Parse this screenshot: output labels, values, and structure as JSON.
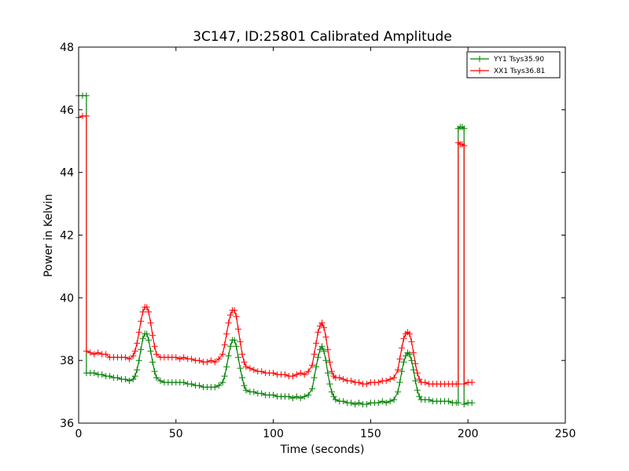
{
  "chart_data": {
    "type": "line",
    "title": "3C147, ID:25801 Calibrated Amplitude",
    "xlabel": "Time (seconds)",
    "ylabel": "Power in Kelvin",
    "xlim": [
      0,
      250
    ],
    "ylim": [
      36,
      48
    ],
    "xticks": [
      0,
      50,
      100,
      150,
      200,
      250
    ],
    "yticks": [
      36,
      38,
      40,
      42,
      44,
      46,
      48
    ],
    "grid": false,
    "legend_position": "top-right",
    "series": [
      {
        "name": "YY1 Tsys35.90",
        "color": "#008000",
        "marker": "+",
        "points": [
          [
            0,
            46.45
          ],
          [
            2,
            46.45
          ],
          [
            4,
            46.45
          ],
          [
            4,
            37.6
          ],
          [
            6,
            37.6
          ],
          [
            8,
            37.6
          ],
          [
            10,
            37.55
          ],
          [
            12,
            37.55
          ],
          [
            14,
            37.5
          ],
          [
            16,
            37.5
          ],
          [
            18,
            37.45
          ],
          [
            20,
            37.45
          ],
          [
            22,
            37.4
          ],
          [
            24,
            37.4
          ],
          [
            26,
            37.35
          ],
          [
            28,
            37.4
          ],
          [
            29,
            37.5
          ],
          [
            30,
            37.7
          ],
          [
            31,
            38.0
          ],
          [
            32,
            38.35
          ],
          [
            33,
            38.7
          ],
          [
            34,
            38.85
          ],
          [
            35,
            38.85
          ],
          [
            36,
            38.65
          ],
          [
            37,
            38.3
          ],
          [
            38,
            37.95
          ],
          [
            39,
            37.65
          ],
          [
            40,
            37.45
          ],
          [
            42,
            37.35
          ],
          [
            44,
            37.3
          ],
          [
            46,
            37.3
          ],
          [
            48,
            37.3
          ],
          [
            50,
            37.3
          ],
          [
            52,
            37.3
          ],
          [
            54,
            37.3
          ],
          [
            56,
            37.25
          ],
          [
            58,
            37.25
          ],
          [
            60,
            37.2
          ],
          [
            62,
            37.2
          ],
          [
            64,
            37.15
          ],
          [
            66,
            37.15
          ],
          [
            68,
            37.15
          ],
          [
            70,
            37.15
          ],
          [
            72,
            37.2
          ],
          [
            74,
            37.3
          ],
          [
            75,
            37.5
          ],
          [
            76,
            37.8
          ],
          [
            77,
            38.15
          ],
          [
            78,
            38.45
          ],
          [
            79,
            38.65
          ],
          [
            80,
            38.65
          ],
          [
            81,
            38.45
          ],
          [
            82,
            38.1
          ],
          [
            83,
            37.75
          ],
          [
            84,
            37.45
          ],
          [
            85,
            37.2
          ],
          [
            86,
            37.05
          ],
          [
            88,
            37.0
          ],
          [
            90,
            37.0
          ],
          [
            92,
            36.95
          ],
          [
            94,
            36.95
          ],
          [
            96,
            36.9
          ],
          [
            98,
            36.9
          ],
          [
            100,
            36.9
          ],
          [
            102,
            36.85
          ],
          [
            104,
            36.85
          ],
          [
            106,
            36.85
          ],
          [
            108,
            36.85
          ],
          [
            110,
            36.8
          ],
          [
            112,
            36.85
          ],
          [
            114,
            36.8
          ],
          [
            116,
            36.85
          ],
          [
            118,
            36.9
          ],
          [
            120,
            37.1
          ],
          [
            121,
            37.45
          ],
          [
            122,
            37.8
          ],
          [
            123,
            38.1
          ],
          [
            124,
            38.35
          ],
          [
            125,
            38.45
          ],
          [
            126,
            38.3
          ],
          [
            127,
            38.0
          ],
          [
            128,
            37.6
          ],
          [
            129,
            37.25
          ],
          [
            130,
            37.0
          ],
          [
            131,
            36.85
          ],
          [
            132,
            36.75
          ],
          [
            134,
            36.7
          ],
          [
            136,
            36.7
          ],
          [
            138,
            36.65
          ],
          [
            140,
            36.65
          ],
          [
            142,
            36.6
          ],
          [
            144,
            36.65
          ],
          [
            146,
            36.6
          ],
          [
            148,
            36.6
          ],
          [
            150,
            36.65
          ],
          [
            152,
            36.65
          ],
          [
            154,
            36.65
          ],
          [
            156,
            36.7
          ],
          [
            158,
            36.65
          ],
          [
            160,
            36.7
          ],
          [
            162,
            36.75
          ],
          [
            164,
            37.0
          ],
          [
            165,
            37.3
          ],
          [
            166,
            37.65
          ],
          [
            167,
            37.95
          ],
          [
            168,
            38.15
          ],
          [
            169,
            38.25
          ],
          [
            170,
            38.2
          ],
          [
            171,
            38.0
          ],
          [
            172,
            37.7
          ],
          [
            173,
            37.35
          ],
          [
            174,
            37.05
          ],
          [
            175,
            36.85
          ],
          [
            176,
            36.75
          ],
          [
            178,
            36.75
          ],
          [
            180,
            36.75
          ],
          [
            182,
            36.7
          ],
          [
            184,
            36.7
          ],
          [
            186,
            36.7
          ],
          [
            188,
            36.7
          ],
          [
            190,
            36.7
          ],
          [
            192,
            36.65
          ],
          [
            194,
            36.65
          ],
          [
            195,
            36.65
          ],
          [
            195,
            45.4
          ],
          [
            196,
            45.45
          ],
          [
            197,
            45.45
          ],
          [
            198,
            45.4
          ],
          [
            198,
            36.6
          ],
          [
            200,
            36.65
          ],
          [
            202,
            36.65
          ]
        ]
      },
      {
        "name": "XX1 Tsys36.81",
        "color": "#ff0000",
        "marker": "+",
        "points": [
          [
            0,
            45.75
          ],
          [
            2,
            45.8
          ],
          [
            4,
            45.8
          ],
          [
            4,
            38.3
          ],
          [
            6,
            38.25
          ],
          [
            8,
            38.2
          ],
          [
            10,
            38.25
          ],
          [
            12,
            38.2
          ],
          [
            14,
            38.2
          ],
          [
            16,
            38.1
          ],
          [
            18,
            38.1
          ],
          [
            20,
            38.1
          ],
          [
            22,
            38.1
          ],
          [
            24,
            38.1
          ],
          [
            26,
            38.05
          ],
          [
            28,
            38.15
          ],
          [
            29,
            38.3
          ],
          [
            30,
            38.55
          ],
          [
            31,
            38.9
          ],
          [
            32,
            39.25
          ],
          [
            33,
            39.55
          ],
          [
            34,
            39.7
          ],
          [
            35,
            39.7
          ],
          [
            36,
            39.55
          ],
          [
            37,
            39.2
          ],
          [
            38,
            38.8
          ],
          [
            39,
            38.45
          ],
          [
            40,
            38.2
          ],
          [
            42,
            38.1
          ],
          [
            44,
            38.1
          ],
          [
            46,
            38.1
          ],
          [
            48,
            38.1
          ],
          [
            50,
            38.1
          ],
          [
            52,
            38.05
          ],
          [
            54,
            38.1
          ],
          [
            56,
            38.05
          ],
          [
            58,
            38.05
          ],
          [
            60,
            38.0
          ],
          [
            62,
            38.0
          ],
          [
            64,
            37.95
          ],
          [
            66,
            37.95
          ],
          [
            68,
            38.0
          ],
          [
            70,
            37.95
          ],
          [
            72,
            38.05
          ],
          [
            74,
            38.2
          ],
          [
            75,
            38.5
          ],
          [
            76,
            38.85
          ],
          [
            77,
            39.2
          ],
          [
            78,
            39.45
          ],
          [
            79,
            39.6
          ],
          [
            80,
            39.6
          ],
          [
            81,
            39.4
          ],
          [
            82,
            39.0
          ],
          [
            83,
            38.6
          ],
          [
            84,
            38.2
          ],
          [
            85,
            37.95
          ],
          [
            86,
            37.8
          ],
          [
            88,
            37.75
          ],
          [
            90,
            37.7
          ],
          [
            92,
            37.65
          ],
          [
            94,
            37.65
          ],
          [
            96,
            37.6
          ],
          [
            98,
            37.6
          ],
          [
            100,
            37.6
          ],
          [
            102,
            37.55
          ],
          [
            104,
            37.55
          ],
          [
            106,
            37.55
          ],
          [
            108,
            37.5
          ],
          [
            110,
            37.5
          ],
          [
            112,
            37.55
          ],
          [
            114,
            37.6
          ],
          [
            116,
            37.55
          ],
          [
            118,
            37.65
          ],
          [
            120,
            37.85
          ],
          [
            121,
            38.2
          ],
          [
            122,
            38.55
          ],
          [
            123,
            38.9
          ],
          [
            124,
            39.1
          ],
          [
            125,
            39.2
          ],
          [
            126,
            39.05
          ],
          [
            127,
            38.75
          ],
          [
            128,
            38.35
          ],
          [
            129,
            37.95
          ],
          [
            130,
            37.65
          ],
          [
            131,
            37.5
          ],
          [
            132,
            37.45
          ],
          [
            134,
            37.45
          ],
          [
            136,
            37.4
          ],
          [
            138,
            37.35
          ],
          [
            140,
            37.35
          ],
          [
            142,
            37.3
          ],
          [
            144,
            37.3
          ],
          [
            146,
            37.25
          ],
          [
            148,
            37.25
          ],
          [
            150,
            37.3
          ],
          [
            152,
            37.3
          ],
          [
            154,
            37.3
          ],
          [
            156,
            37.35
          ],
          [
            158,
            37.35
          ],
          [
            160,
            37.4
          ],
          [
            162,
            37.45
          ],
          [
            164,
            37.7
          ],
          [
            165,
            38.05
          ],
          [
            166,
            38.4
          ],
          [
            167,
            38.7
          ],
          [
            168,
            38.85
          ],
          [
            169,
            38.9
          ],
          [
            170,
            38.85
          ],
          [
            171,
            38.6
          ],
          [
            172,
            38.25
          ],
          [
            173,
            37.9
          ],
          [
            174,
            37.6
          ],
          [
            175,
            37.4
          ],
          [
            176,
            37.3
          ],
          [
            178,
            37.3
          ],
          [
            180,
            37.25
          ],
          [
            182,
            37.25
          ],
          [
            184,
            37.25
          ],
          [
            186,
            37.25
          ],
          [
            188,
            37.25
          ],
          [
            190,
            37.25
          ],
          [
            192,
            37.25
          ],
          [
            194,
            37.25
          ],
          [
            195,
            37.25
          ],
          [
            195,
            44.95
          ],
          [
            196,
            44.9
          ],
          [
            197,
            44.9
          ],
          [
            198,
            44.85
          ],
          [
            198,
            37.25
          ],
          [
            200,
            37.3
          ],
          [
            202,
            37.3
          ]
        ]
      }
    ]
  }
}
